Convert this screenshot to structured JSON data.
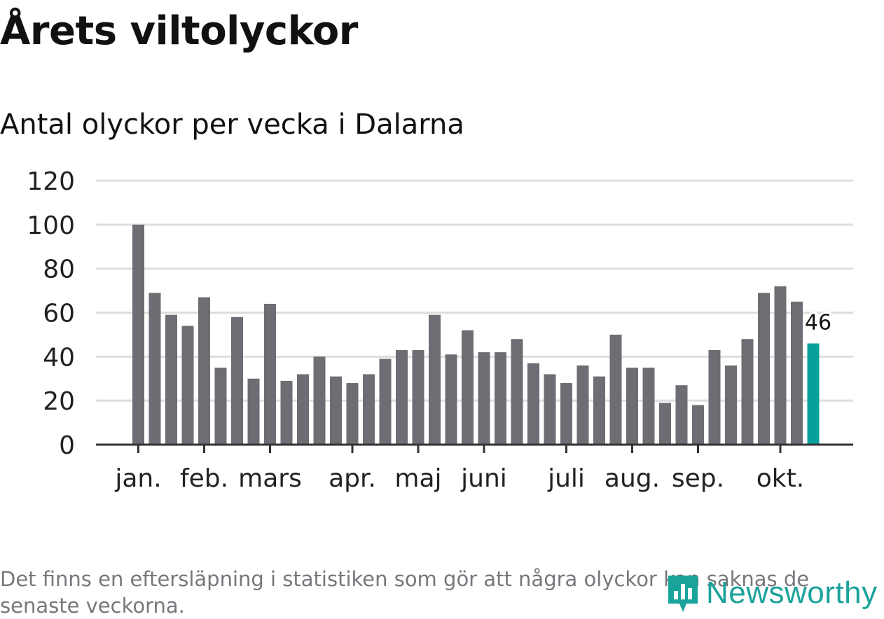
{
  "title": "Årets viltolyckor",
  "subtitle": "Antal olyckor per vecka i Dalarna",
  "footnote": "Det finns en eftersläpning i statistiken som gör att några olyckor kan saknas de senaste veckorna.",
  "logo": {
    "text": "Newsworthy",
    "icon": "newsworthy-logo-icon"
  },
  "colors": {
    "bar": "#6e6d73",
    "highlight": "#06a19a",
    "grid": "#dedede",
    "axis": "#333333",
    "text": "#222222"
  },
  "chart_data": {
    "type": "bar",
    "title": "Antal olyckor per vecka i Dalarna",
    "xlabel": "",
    "ylabel": "",
    "ylim": [
      0,
      120
    ],
    "yticks": [
      0,
      20,
      40,
      60,
      80,
      100,
      120
    ],
    "grid": true,
    "values": [
      100,
      69,
      59,
      54,
      67,
      35,
      58,
      30,
      64,
      29,
      32,
      40,
      31,
      28,
      32,
      39,
      43,
      43,
      59,
      41,
      52,
      42,
      42,
      48,
      37,
      32,
      28,
      36,
      31,
      50,
      35,
      35,
      19,
      27,
      18,
      43,
      36,
      48,
      69,
      72,
      65,
      46
    ],
    "highlight_last": true,
    "data_label": "46",
    "month_labels": [
      {
        "label": "jan.",
        "bar_index": 0
      },
      {
        "label": "feb.",
        "bar_index": 4
      },
      {
        "label": "mars",
        "bar_index": 8
      },
      {
        "label": "apr.",
        "bar_index": 13
      },
      {
        "label": "maj",
        "bar_index": 17
      },
      {
        "label": "juni",
        "bar_index": 21
      },
      {
        "label": "juli",
        "bar_index": 26
      },
      {
        "label": "aug.",
        "bar_index": 30
      },
      {
        "label": "sep.",
        "bar_index": 34
      },
      {
        "label": "okt.",
        "bar_index": 39
      }
    ]
  }
}
